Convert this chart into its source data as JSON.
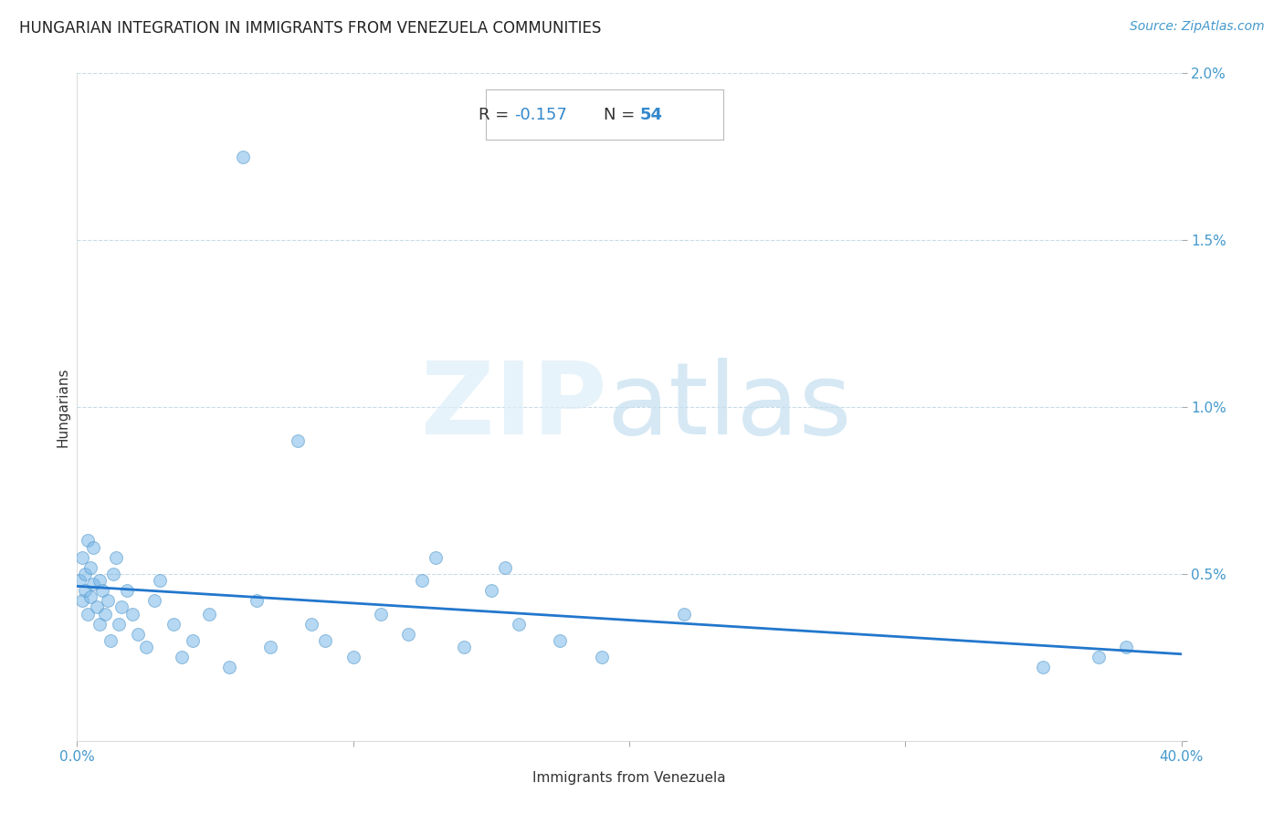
{
  "title": "HUNGARIAN INTEGRATION IN IMMIGRANTS FROM VENEZUELA COMMUNITIES",
  "source": "Source: ZipAtlas.com",
  "xlabel": "Immigrants from Venezuela",
  "ylabel": "Hungarians",
  "R": -0.157,
  "N": 54,
  "xlim": [
    0.0,
    0.4
  ],
  "ylim": [
    0.0,
    0.02
  ],
  "xticks": [
    0.0,
    0.1,
    0.2,
    0.3,
    0.4
  ],
  "xtick_labels": [
    "0.0%",
    "",
    "",
    "",
    "40.0%"
  ],
  "yticks": [
    0.0,
    0.005,
    0.01,
    0.015,
    0.02
  ],
  "ytick_labels": [
    "",
    "0.5%",
    "1.0%",
    "1.5%",
    "2.0%"
  ],
  "scatter_color": "#7ab8e8",
  "scatter_edge_color": "#5599cc",
  "scatter_alpha": 0.55,
  "scatter_size": 100,
  "line_color": "#2277cc",
  "line_width": 2.0,
  "background_color": "#ffffff",
  "grid_color": "#c8dce8",
  "title_fontsize": 12,
  "axis_label_fontsize": 11,
  "tick_fontsize": 11,
  "scatter_x": [
    0.001,
    0.002,
    0.002,
    0.003,
    0.003,
    0.004,
    0.004,
    0.005,
    0.005,
    0.006,
    0.006,
    0.007,
    0.008,
    0.008,
    0.009,
    0.01,
    0.011,
    0.012,
    0.013,
    0.014,
    0.015,
    0.016,
    0.018,
    0.02,
    0.022,
    0.025,
    0.028,
    0.03,
    0.035,
    0.038,
    0.042,
    0.048,
    0.055,
    0.06,
    0.065,
    0.07,
    0.08,
    0.085,
    0.09,
    0.1,
    0.11,
    0.12,
    0.125,
    0.13,
    0.14,
    0.15,
    0.155,
    0.16,
    0.175,
    0.19,
    0.22,
    0.35,
    0.37,
    0.38
  ],
  "scatter_y": [
    0.0048,
    0.0055,
    0.0042,
    0.005,
    0.0045,
    0.0038,
    0.006,
    0.0052,
    0.0043,
    0.0058,
    0.0047,
    0.004,
    0.0035,
    0.0048,
    0.0045,
    0.0038,
    0.0042,
    0.003,
    0.005,
    0.0055,
    0.0035,
    0.004,
    0.0045,
    0.0038,
    0.0032,
    0.0028,
    0.0042,
    0.0048,
    0.0035,
    0.0025,
    0.003,
    0.0038,
    0.0022,
    0.0175,
    0.0042,
    0.0028,
    0.009,
    0.0035,
    0.003,
    0.0025,
    0.0038,
    0.0032,
    0.0048,
    0.0055,
    0.0028,
    0.0045,
    0.0052,
    0.0035,
    0.003,
    0.0025,
    0.0038,
    0.0022,
    0.0025,
    0.0028
  ]
}
